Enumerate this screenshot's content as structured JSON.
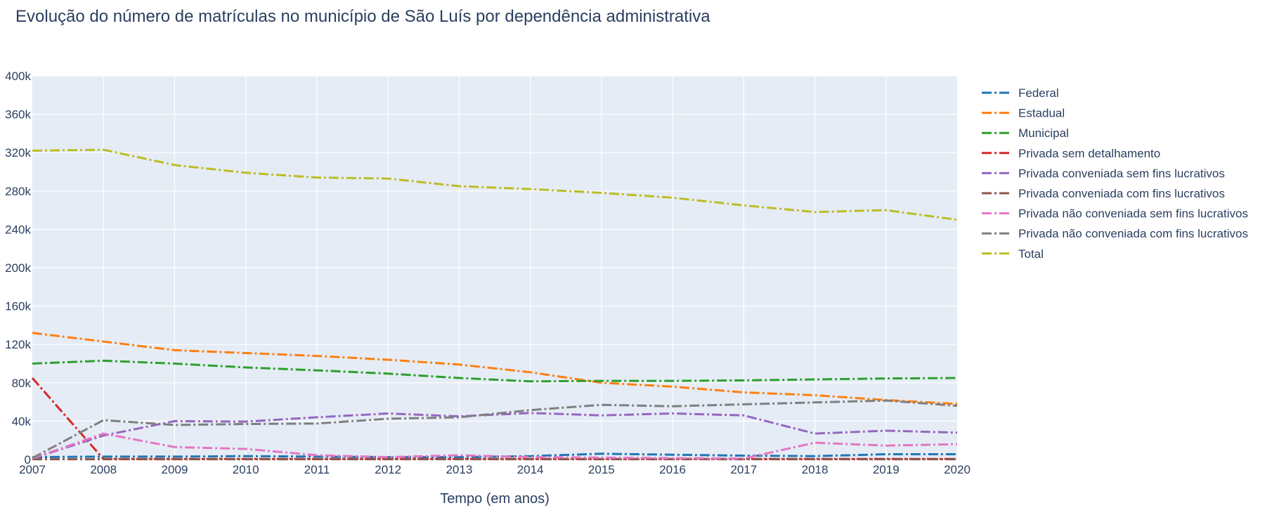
{
  "chart_data": {
    "type": "line",
    "title": "Evolução do número de matrículas no município de São Luís por dependência administrativa",
    "xlabel": "Tempo (em anos)",
    "ylabel": "",
    "x": [
      2007,
      2008,
      2009,
      2010,
      2011,
      2012,
      2013,
      2014,
      2015,
      2016,
      2017,
      2018,
      2019,
      2020
    ],
    "xlim": [
      2007,
      2020
    ],
    "ylim": [
      0,
      400000
    ],
    "y_ticks": [
      0,
      40000,
      80000,
      120000,
      160000,
      200000,
      240000,
      280000,
      320000,
      360000,
      400000
    ],
    "y_tick_labels": [
      "0",
      "40k",
      "80k",
      "120k",
      "160k",
      "200k",
      "240k",
      "280k",
      "320k",
      "360k",
      "400k"
    ],
    "x_tick_labels": [
      "2007",
      "2008",
      "2009",
      "2010",
      "2011",
      "2012",
      "2013",
      "2014",
      "2015",
      "2016",
      "2017",
      "2018",
      "2019",
      "2020"
    ],
    "grid": true,
    "legend_position": "right",
    "series": [
      {
        "name": "Federal",
        "color": "#1f77b4",
        "values": [
          2500,
          3000,
          3000,
          3500,
          3000,
          2500,
          2500,
          3500,
          6000,
          5000,
          4000,
          3500,
          5500,
          5500
        ]
      },
      {
        "name": "Estadual",
        "color": "#ff7f0e",
        "values": [
          132000,
          123000,
          114000,
          111000,
          108000,
          104000,
          99000,
          91000,
          80000,
          76000,
          70000,
          67000,
          62000,
          58000
        ]
      },
      {
        "name": "Municipal",
        "color": "#2ca02c",
        "values": [
          100000,
          103000,
          100000,
          96000,
          93000,
          89500,
          85000,
          81500,
          82000,
          82000,
          82500,
          83500,
          84500,
          85000
        ]
      },
      {
        "name": "Privada sem detalhamento",
        "color": "#d62728",
        "values": [
          85000,
          500,
          500,
          500,
          500,
          500,
          500,
          500,
          500,
          500,
          500,
          500,
          500,
          500
        ]
      },
      {
        "name": "Privada conveniada sem fins lucrativos",
        "color": "#9467bd",
        "values": [
          1000,
          25000,
          40000,
          39500,
          44000,
          48000,
          45000,
          48500,
          46000,
          48000,
          46000,
          27000,
          30000,
          28000
        ]
      },
      {
        "name": "Privada conveniada com fins lucrativos",
        "color": "#8c564b",
        "values": [
          300,
          300,
          300,
          300,
          300,
          300,
          300,
          300,
          300,
          300,
          300,
          300,
          300,
          300
        ]
      },
      {
        "name": "Privada não conveniada sem fins lucrativos",
        "color": "#e377c2",
        "values": [
          1000,
          27000,
          13000,
          11000,
          4500,
          2500,
          4500,
          2500,
          2000,
          1500,
          1000,
          17500,
          14500,
          16000
        ]
      },
      {
        "name": "Privada não conveniada com fins lucrativos",
        "color": "#7f7f7f",
        "values": [
          1500,
          41000,
          36000,
          37000,
          37500,
          42500,
          44000,
          51500,
          57000,
          55500,
          57500,
          59500,
          61500,
          56000
        ]
      },
      {
        "name": "Total",
        "color": "#bcbd22",
        "values": [
          322000,
          323000,
          307000,
          299000,
          294000,
          293000,
          285000,
          282000,
          278000,
          273000,
          265000,
          258000,
          260000,
          250000
        ]
      }
    ]
  }
}
